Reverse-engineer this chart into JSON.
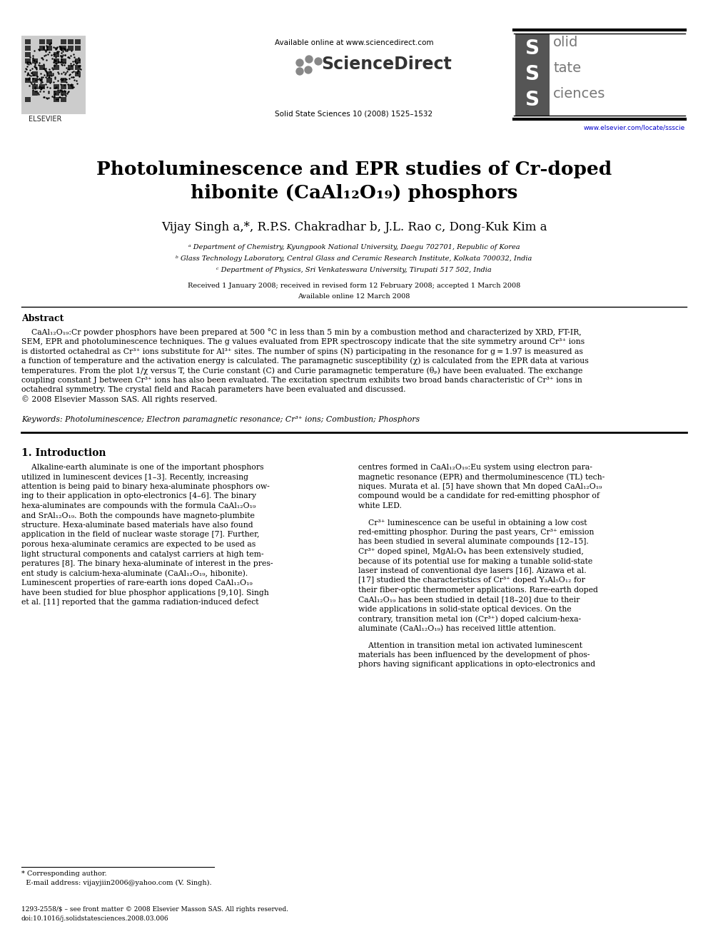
{
  "page_width": 9.92,
  "page_height": 13.23,
  "dpi": 100,
  "bg_color": "#ffffff",
  "header_available": "Available online at www.sciencedirect.com",
  "header_journal": "Solid State Sciences 10 (2008) 1525–1532",
  "header_url": "www.elsevier.com/locate/ssscie",
  "title_line1": "Photoluminescence and EPR studies of Cr-doped",
  "title_line2": "hibonite (CaAl₁₂O₁₉) phosphors",
  "authors_line": "Vijay Singh a,*, R.P.S. Chakradhar b, J.L. Rao c, Dong-Kuk Kim a",
  "aff1": "ᵃ Department of Chemistry, Kyungpook National University, Daegu 702701, Republic of Korea",
  "aff2": "ᵇ Glass Technology Laboratory, Central Glass and Ceramic Research Institute, Kolkata 700032, India",
  "aff3": "ᶜ Department of Physics, Sri Venkateswara University, Tirupati 517 502, India",
  "dates1": "Received 1 January 2008; received in revised form 12 February 2008; accepted 1 March 2008",
  "dates2": "Available online 12 March 2008",
  "abstract_head": "Abstract",
  "abstract_body": "    CaAl₁₂O₁₉:Cr powder phosphors have been prepared at 500 °C in less than 5 min by a combustion method and characterized by XRD, FT-IR, SEM, EPR and photoluminescence techniques. The g values evaluated from EPR spectroscopy indicate that the site symmetry around Cr³⁺ ions is distorted octahedral as Cr³⁺ ions substitute for Al³⁺ sites. The number of spins (N) participating in the resonance for g = 1.97 is measured as a function of temperature and the activation energy is calculated. The paramagnetic susceptibility (χ) is calculated from the EPR data at various temperatures. From the plot 1/χ versus T, the Curie constant (C) and Curie paramagnetic temperature (θₚ) have been evaluated. The exchange coupling constant J between Cr³⁺ ions has also been evaluated. The excitation spectrum exhibits two broad bands characteristic of Cr³⁺ ions in octahedral symmetry. The crystal field and Racah parameters have been evaluated and discussed.\n© 2008 Elsevier Masson SAS. All rights reserved.",
  "keywords_line": "Keywords: Photoluminescence; Electron paramagnetic resonance; Cr³⁺ ions; Combustion; Phosphors",
  "sec1_title": "1. Introduction",
  "col1_text": "    Alkaline-earth aluminate is one of the important phosphors\nutilized in luminescent devices [1–3]. Recently, increasing\nattention is being paid to binary hexa-aluminate phosphors ow-\ning to their application in opto-electronics [4–6]. The binary\nhexa-aluminates are compounds with the formula CaAl₁₂O₁₉\nand SrAl₁₂O₁₉. Both the compounds have magneto-plumbite\nstructure. Hexa-aluminate based materials have also found\napplication in the field of nuclear waste storage [7]. Further,\nporous hexa-aluminate ceramics are expected to be used as\nlight structural components and catalyst carriers at high tem-\nperatures [8]. The binary hexa-aluminate of interest in the pres-\nent study is calcium-hexa-aluminate (CaAl₁₂O₁₉, hibonite).\nLuminescent properties of rare-earth ions doped CaAl₁₂O₁₉\nhave been studied for blue phosphor applications [9,10]. Singh\net al. [11] reported that the gamma radiation-induced defect",
  "col2_p1": "centres formed in CaAl₁₂O₁₉:Eu system using electron para-\nmagnetic resonance (EPR) and thermoluminescence (TL) tech-\nniques. Murata et al. [5] have shown that Mn doped CaAl₁₂O₁₉\ncompound would be a candidate for red-emitting phosphor of\nwhite LED.",
  "col2_p2": "    Cr³⁺ luminescence can be useful in obtaining a low cost\nred-emitting phosphor. During the past years, Cr³⁺ emission\nhas been studied in several aluminate compounds [12–15].\nCr³⁺ doped spinel, MgAl₂O₄ has been extensively studied,\nbecause of its potential use for making a tunable solid-state\nlaser instead of conventional dye lasers [16]. Aizawa et al.\n[17] studied the characteristics of Cr³⁺ doped Y₃Al₅O₁₂ for\ntheir fiber-optic thermometer applications. Rare-earth doped\nCaAl₁₂O₁₉ has been studied in detail [18–20] due to their\nwide applications in solid-state optical devices. On the\ncontrary, transition metal ion (Cr³⁺) doped calcium-hexa-\naluminate (CaAl₁₂O₁₉) has received little attention.",
  "col2_p3": "    Attention in transition metal ion activated luminescent\nmaterials has been influenced by the development of phos-\nphors having significant applications in opto-electronics and",
  "footnote_star": "* Corresponding author.",
  "footnote_email": "  E-mail address: vijayjiin2006@yahoo.com (V. Singh).",
  "copyright1": "1293-2558/$ – see front matter © 2008 Elsevier Masson SAS. All rights reserved.",
  "copyright2": "doi:10.1016/j.solidstatesciences.2008.03.006"
}
